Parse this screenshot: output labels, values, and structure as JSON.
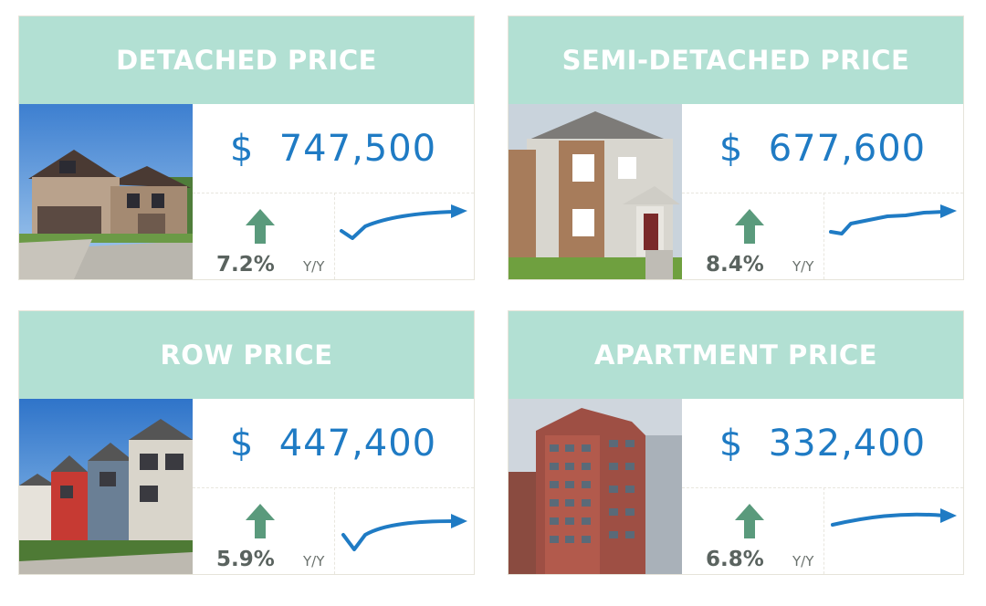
{
  "cards": [
    {
      "title": "DETACHED PRICE",
      "price": "$  747,500",
      "change": "7.2%",
      "period": "Y/Y",
      "photo": "detached-house-photo",
      "trend_icon": "trend-up-icon"
    },
    {
      "title": "SEMI-DETACHED PRICE",
      "price": "$  677,600",
      "change": "8.4%",
      "period": "Y/Y",
      "photo": "semi-detached-house-photo",
      "trend_icon": "trend-up-icon"
    },
    {
      "title": "ROW PRICE",
      "price": "$  447,400",
      "change": "5.9%",
      "period": "Y/Y",
      "photo": "row-houses-photo",
      "trend_icon": "trend-up-icon"
    },
    {
      "title": "APARTMENT PRICE",
      "price": "$  332,400",
      "change": "6.8%",
      "period": "Y/Y",
      "photo": "apartment-tower-photo",
      "trend_icon": "trend-up-icon"
    }
  ],
  "colors": {
    "header": "#b2e0d3",
    "price": "#1f7bc4",
    "arrow": "#5a9a7c",
    "trend": "#1f7bc4"
  }
}
